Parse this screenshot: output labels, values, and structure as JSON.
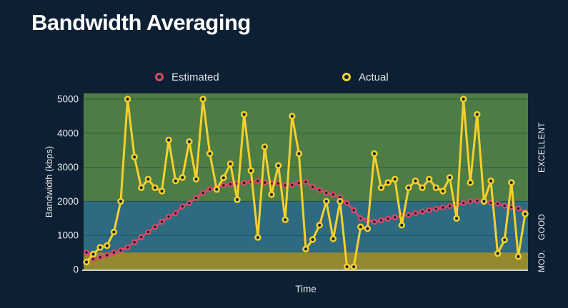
{
  "page": {
    "title": "Bandwidth Averaging"
  },
  "legend": {
    "items": [
      {
        "label": "Estimated",
        "color": "#d84a68"
      },
      {
        "label": "Actual",
        "color": "#f5d02d"
      }
    ]
  },
  "colors": {
    "background": "#0d2033",
    "band_excellent": "#4d7d45",
    "band_good": "#2e6a80",
    "band_moderate": "#93892f",
    "series_estimated": "#d84a68",
    "series_actual": "#f5d02d",
    "marker_fill": "#0d2033",
    "gridline": "rgba(10,30,50,0.30)",
    "axis_line": "#c9d2d9",
    "tick_text": "#eaeef2",
    "axis_title_text": "#dde3e9",
    "band_label_text": "#f2f5f8"
  },
  "chart_data": {
    "type": "line",
    "title": "Bandwidth Averaging",
    "xlabel": "Time",
    "ylabel": "Bandwidth (kbps)",
    "ylim": [
      0,
      5000
    ],
    "yticks": [
      0,
      1000,
      2000,
      3000,
      4000,
      5000
    ],
    "grid": true,
    "legend_position": "top",
    "x_tick_labels_shown": false,
    "bands": [
      {
        "label": "EXCELLENT",
        "from": 2000,
        "to": 5170,
        "color": "#4d7d45"
      },
      {
        "label": "GOOD",
        "from": 500,
        "to": 2000,
        "color": "#2e6a80"
      },
      {
        "label": "MOD.",
        "from": 0,
        "to": 500,
        "color": "#93892f"
      }
    ],
    "x": [
      0,
      1,
      2,
      3,
      4,
      5,
      6,
      7,
      8,
      9,
      10,
      11,
      12,
      13,
      14,
      15,
      16,
      17,
      18,
      19,
      20,
      21,
      22,
      23,
      24,
      25,
      26,
      27,
      28,
      29,
      30,
      31,
      32,
      33,
      34,
      35,
      36,
      37,
      38,
      39,
      40,
      41,
      42,
      43,
      44,
      45,
      46,
      47,
      48,
      49,
      50,
      51,
      52,
      53,
      54,
      55,
      56,
      57,
      58,
      59,
      60,
      61,
      62,
      63,
      64
    ],
    "series": [
      {
        "name": "Estimated",
        "color": "#d84a68",
        "values": [
          500,
          310,
          360,
          420,
          500,
          560,
          650,
          800,
          950,
          1100,
          1250,
          1400,
          1550,
          1650,
          1850,
          1950,
          2100,
          2250,
          2350,
          2420,
          2470,
          2500,
          2520,
          2540,
          2570,
          2600,
          2550,
          2520,
          2530,
          2470,
          2480,
          2540,
          2570,
          2420,
          2330,
          2250,
          2200,
          2120,
          1950,
          1740,
          1500,
          1445,
          1400,
          1445,
          1490,
          1530,
          1570,
          1600,
          1650,
          1700,
          1740,
          1780,
          1820,
          1860,
          1900,
          1950,
          2000,
          2020,
          1990,
          1960,
          1930,
          1870,
          1830,
          1790,
          1690
        ]
      },
      {
        "name": "Actual",
        "color": "#f5d02d",
        "values": [
          220,
          450,
          650,
          700,
          1100,
          2000,
          5000,
          3300,
          2400,
          2650,
          2400,
          2300,
          3800,
          2600,
          2700,
          3750,
          2650,
          5000,
          3400,
          2350,
          2690,
          3100,
          2050,
          4550,
          2900,
          940,
          3600,
          2200,
          3050,
          1460,
          4500,
          3400,
          600,
          880,
          1300,
          2000,
          900,
          2000,
          80,
          80,
          1250,
          1200,
          3400,
          2400,
          2550,
          2650,
          1300,
          2400,
          2600,
          2400,
          2650,
          2400,
          2300,
          2700,
          1500,
          5000,
          2550,
          4550,
          2000,
          2600,
          470,
          870,
          2550,
          380,
          1630
        ]
      }
    ]
  }
}
